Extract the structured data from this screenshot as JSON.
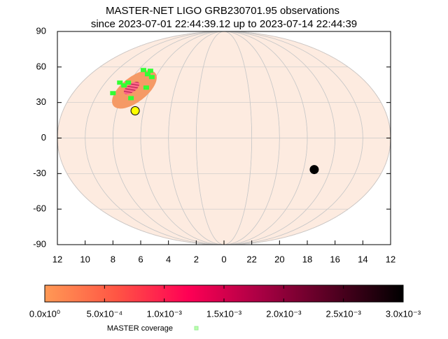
{
  "chart_data": {
    "type": "scatter",
    "title": "MASTER-NET LIGO GRB230701.95 observations",
    "subtitle": "since 2023-07-01 22:44:39.12 up to 2023-07-14 22:44:39",
    "xlim": [
      36,
      12
    ],
    "ylim": [
      -90,
      90
    ],
    "xticks": [
      {
        "value": 36,
        "label": "12"
      },
      {
        "value": 34,
        "label": "10"
      },
      {
        "value": 32,
        "label": "8"
      },
      {
        "value": 30,
        "label": "6"
      },
      {
        "value": 28,
        "label": "4"
      },
      {
        "value": 26,
        "label": "2"
      },
      {
        "value": 24,
        "label": "0"
      },
      22,
      20,
      18,
      16,
      14,
      12
    ],
    "yticks": [
      -90,
      -60,
      -30,
      0,
      30,
      60,
      90
    ],
    "grid": true,
    "series": [
      {
        "name": "MASTER coverage",
        "color": "#33ff33",
        "legend_color": "#bbffaa",
        "x": [
          29.8,
          29.3,
          29.5,
          29.2,
          30.9,
          31.2,
          32.0,
          30.7,
          29.6,
          31.5
        ],
        "y": [
          57.4,
          56.8,
          53.9,
          51.5,
          46.8,
          44.4,
          37.9,
          33.7,
          42.6,
          46.8
        ]
      },
      {
        "color": "#ffff00",
        "x": [
          30.4
        ],
        "y": [
          23
        ]
      },
      {
        "color": "#000000",
        "x": [
          17.5
        ],
        "y": [
          -26.6
        ]
      }
    ],
    "colorbar": {
      "lim": [
        0,
        0.003
      ],
      "colors": [
        "#ff9955",
        "#ff5544",
        "#ff0055",
        "#aa0044",
        "#550022",
        "#000000"
      ],
      "ticks": [
        {
          "value": 0,
          "label": "0.0x10⁰"
        },
        {
          "value": 0.0005,
          "label": "5.0x10⁻⁴"
        },
        {
          "value": 0.001,
          "label": "1.0x10⁻³"
        },
        {
          "value": 0.0015,
          "label": "1.5x10⁻³"
        },
        {
          "value": 0.002,
          "label": "2.0x10⁻³"
        },
        {
          "value": 0.0025,
          "label": "2.5x10⁻³"
        },
        {
          "value": 0.003,
          "label": "3.0x10⁻³"
        }
      ]
    }
  }
}
